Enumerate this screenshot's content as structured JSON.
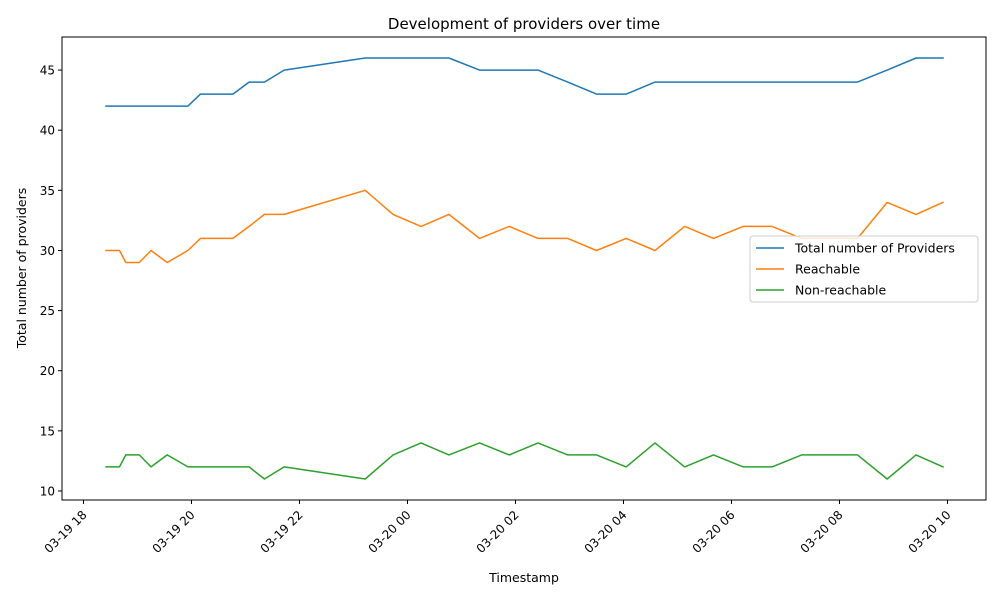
{
  "chart_data": {
    "type": "line",
    "title": "Development of providers over time",
    "xlabel": "Timestamp",
    "ylabel": "Total number of providers",
    "x_ticks": [
      "03-19 18",
      "03-19 20",
      "03-19 22",
      "03-20 00",
      "03-20 02",
      "03-20 04",
      "03-20 06",
      "03-20 08",
      "03-20 10"
    ],
    "y_ticks": [
      10,
      15,
      20,
      25,
      30,
      35,
      40,
      45
    ],
    "xlim": [
      "2024-03-19T18:00",
      "2024-03-20T10:00"
    ],
    "ylim": [
      9.25,
      47.75
    ],
    "x": [
      "2024-03-19T18:25",
      "2024-03-19T18:40",
      "2024-03-19T18:47",
      "2024-03-19T19:02",
      "2024-03-19T19:15",
      "2024-03-19T19:33",
      "2024-03-19T19:56",
      "2024-03-19T20:10",
      "2024-03-19T20:46",
      "2024-03-19T21:04",
      "2024-03-19T21:21",
      "2024-03-19T21:43",
      "2024-03-19T23:13",
      "2024-03-19T23:44",
      "2024-03-20T00:15",
      "2024-03-20T00:46",
      "2024-03-20T01:20",
      "2024-03-20T01:53",
      "2024-03-20T02:25",
      "2024-03-20T02:58",
      "2024-03-20T03:30",
      "2024-03-20T04:03",
      "2024-03-20T04:35",
      "2024-03-20T05:08",
      "2024-03-20T05:40",
      "2024-03-20T06:13",
      "2024-03-20T06:45",
      "2024-03-20T07:18",
      "2024-03-20T07:50",
      "2024-03-20T08:20",
      "2024-03-20T08:53",
      "2024-03-20T09:25",
      "2024-03-20T09:55"
    ],
    "series": [
      {
        "name": "Total number of Providers",
        "color": "#1f77b4",
        "values": [
          42,
          42,
          42,
          42,
          42,
          42,
          42,
          43,
          43,
          44,
          44,
          45,
          46,
          46,
          46,
          46,
          45,
          45,
          45,
          44,
          43,
          43,
          44,
          44,
          44,
          44,
          44,
          44,
          44,
          44,
          45,
          46,
          46
        ]
      },
      {
        "name": "Reachable",
        "color": "#ff7f0e",
        "values": [
          30,
          30,
          29,
          29,
          30,
          29,
          30,
          31,
          31,
          32,
          33,
          33,
          35,
          33,
          32,
          33,
          31,
          32,
          31,
          31,
          30,
          31,
          30,
          32,
          31,
          32,
          32,
          31,
          31,
          31,
          34,
          33,
          34
        ]
      },
      {
        "name": "Non-reachable",
        "color": "#2ca02c",
        "values": [
          12,
          12,
          13,
          13,
          12,
          13,
          12,
          12,
          12,
          12,
          11,
          12,
          11,
          13,
          14,
          13,
          14,
          13,
          14,
          13,
          13,
          12,
          14,
          12,
          13,
          12,
          12,
          13,
          13,
          13,
          11,
          13,
          12
        ]
      }
    ],
    "legend_position": "center-right",
    "grid": false
  }
}
